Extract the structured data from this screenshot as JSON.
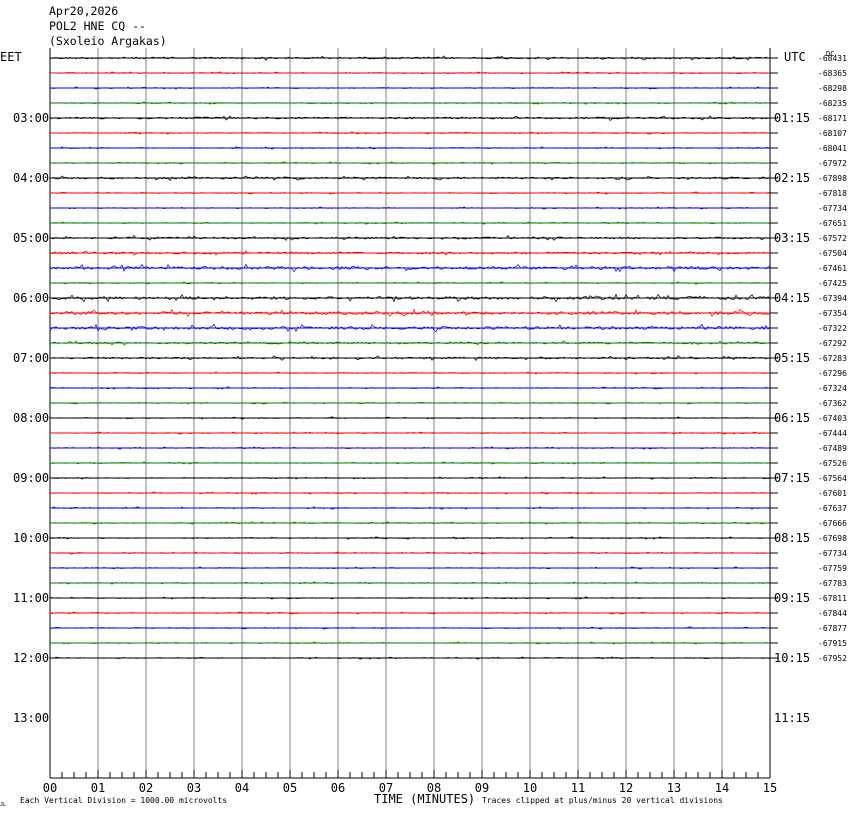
{
  "header": {
    "date": "Apr20,2026",
    "station": "POL2 HNE CQ --",
    "site": "(Sxoleio Argakas)"
  },
  "footer": {
    "scale_note": "Each Vertical Division = 1000.00 microvolts",
    "clip_note": "Traces clipped at plus/minus 20 vertical divisions",
    "corner_mark": "JL"
  },
  "colors": {
    "trace_cycle": [
      "#000000",
      "#ff0000",
      "#0000ff",
      "#008000"
    ],
    "grid": "#808080"
  },
  "chart_data": {
    "type": "line",
    "title": "Apr20,2026 POL2 HNE CQ -- (Sxoleio Argakas)",
    "xlabel": "TIME (MINUTES)",
    "left_axis_label": "EET",
    "right_axis_label": "UTC",
    "dc_label": "DC",
    "x_range": [
      0,
      15
    ],
    "x_ticks": [
      "00",
      "01",
      "02",
      "03",
      "04",
      "05",
      "06",
      "07",
      "08",
      "09",
      "10",
      "11",
      "12",
      "13",
      "14",
      "15"
    ],
    "left_hour_labels": [
      "03:00",
      "04:00",
      "05:00",
      "06:00",
      "07:00",
      "08:00",
      "09:00",
      "10:00",
      "11:00",
      "12:00",
      "13:00"
    ],
    "right_hour_labels": [
      "01:15",
      "02:15",
      "03:15",
      "04:15",
      "05:15",
      "06:15",
      "07:15",
      "08:15",
      "09:15",
      "10:15",
      "11:15"
    ],
    "rows_per_hour": 4,
    "rows_before_first_label": 4,
    "dc_offsets": [
      -68431,
      -68365,
      -68298,
      -68235,
      -68171,
      -68107,
      -68041,
      -67972,
      -67898,
      -67818,
      -67734,
      -67651,
      -67572,
      -67504,
      -67461,
      -67425,
      -67394,
      -67354,
      -67322,
      -67292,
      -67283,
      -67296,
      -67324,
      -67362,
      -67403,
      -67444,
      -67489,
      -67526,
      -67564,
      -67601,
      -67637,
      -67666,
      -67698,
      -67734,
      -67759,
      -67783,
      -67811,
      -67844,
      -67877,
      -67915,
      -67952
    ],
    "trace_noise_level": [
      2,
      1,
      1,
      1,
      2,
      1,
      1,
      1,
      2,
      1,
      1,
      1,
      2,
      2,
      3,
      1,
      3,
      3,
      3,
      2,
      2,
      1,
      1,
      1,
      1,
      1,
      1,
      1,
      1,
      1,
      1,
      1,
      1,
      1,
      1,
      1,
      1,
      1,
      1,
      1,
      1
    ],
    "grid": true
  }
}
